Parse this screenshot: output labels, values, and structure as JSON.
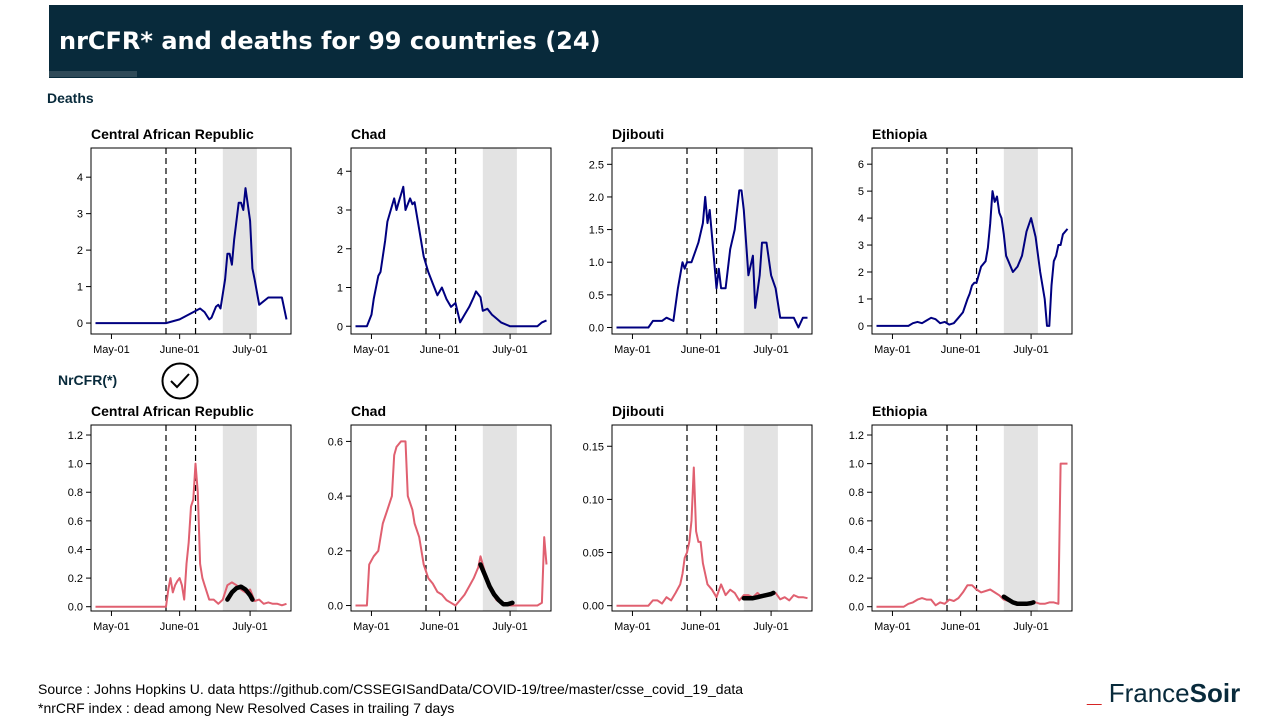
{
  "header": {
    "title": "nrCFR* and deaths for 99 countries (24)"
  },
  "sections": {
    "deaths": "Deaths",
    "nrcfr": "NrCFR(*)"
  },
  "footer": {
    "source": "Source : Johns Hopkins U. data https://github.com/CSSEGISandData/COVID-19/tree/master/csse_covid_19_data",
    "note": "*nrCRF index : dead among New Resolved  Cases in trailing 7 days"
  },
  "logo": {
    "dash": "_",
    "part1": "France",
    "part2": "Soir"
  },
  "colors": {
    "header": "#082a3b",
    "deaths_line": "#000080",
    "nrcfr_line": "#e06070",
    "trend": "#000000",
    "shade": "#e3e3e3"
  },
  "chart_data": [
    {
      "type": "line",
      "title": "Central African Republic",
      "metric": "deaths",
      "xlim": [
        0,
        88
      ],
      "ylim": [
        -0.3,
        4.8
      ],
      "yticks": [
        0,
        1,
        2,
        3,
        4
      ],
      "ytick_labels": [
        "0",
        "1",
        "2",
        "3",
        "4"
      ],
      "xticks": [
        9,
        39,
        70
      ],
      "xtick_labels": [
        "May-01",
        "June-01",
        "July-01"
      ],
      "vlines": [
        33,
        46
      ],
      "shade": [
        58,
        73
      ],
      "x": [
        2,
        33,
        39,
        45,
        48,
        50,
        52,
        53,
        55,
        56,
        57,
        59,
        60,
        61,
        62,
        63,
        65,
        66,
        67,
        68,
        70,
        71,
        72,
        74,
        78,
        84,
        86
      ],
      "y": [
        0,
        0,
        0.1,
        0.3,
        0.4,
        0.3,
        0.1,
        0.15,
        0.45,
        0.5,
        0.4,
        1.2,
        1.9,
        1.9,
        1.6,
        2.3,
        3.3,
        3.3,
        3.1,
        3.7,
        2.8,
        1.5,
        1.2,
        0.5,
        0.7,
        0.7,
        0.1
      ]
    },
    {
      "type": "line",
      "title": "Chad",
      "metric": "deaths",
      "xlim": [
        0,
        88
      ],
      "ylim": [
        -0.2,
        4.6
      ],
      "yticks": [
        0,
        1,
        2,
        3,
        4
      ],
      "ytick_labels": [
        "0",
        "1",
        "2",
        "3",
        "4"
      ],
      "xticks": [
        9,
        39,
        70
      ],
      "xtick_labels": [
        "May-01",
        "June-01",
        "July-01"
      ],
      "vlines": [
        33,
        46
      ],
      "shade": [
        58,
        73
      ],
      "x": [
        2,
        7,
        9,
        10,
        12,
        13,
        15,
        16,
        18,
        19,
        20,
        21,
        22,
        23,
        24,
        26,
        27,
        28,
        30,
        32,
        34,
        36,
        38,
        40,
        42,
        44,
        46,
        48,
        50,
        52,
        54,
        55,
        57,
        58,
        60,
        62,
        64,
        66,
        70,
        74,
        78,
        82,
        84,
        86
      ],
      "y": [
        0,
        0,
        0.3,
        0.7,
        1.3,
        1.4,
        2.2,
        2.7,
        3.1,
        3.3,
        3.0,
        3.2,
        3.4,
        3.6,
        3.0,
        3.3,
        3.15,
        3.2,
        2.5,
        1.8,
        1.4,
        1.1,
        0.8,
        1.0,
        0.7,
        0.5,
        0.6,
        0.1,
        0.3,
        0.5,
        0.75,
        0.9,
        0.75,
        0.4,
        0.45,
        0.3,
        0.2,
        0.1,
        0,
        0,
        0,
        0,
        0.1,
        0.15
      ]
    },
    {
      "type": "line",
      "title": "Djibouti",
      "metric": "deaths",
      "xlim": [
        0,
        88
      ],
      "ylim": [
        -0.1,
        2.75
      ],
      "yticks": [
        0,
        0.5,
        1,
        1.5,
        2,
        2.5
      ],
      "ytick_labels": [
        "0.0",
        "0.5",
        "1.0",
        "1.5",
        "2.0",
        "2.5"
      ],
      "xticks": [
        9,
        39,
        70
      ],
      "xtick_labels": [
        "May-01",
        "June-01",
        "July-01"
      ],
      "vlines": [
        33,
        46
      ],
      "shade": [
        58,
        73
      ],
      "x": [
        2,
        16,
        18,
        22,
        24,
        27,
        29,
        31,
        32,
        33,
        35,
        37,
        38,
        40,
        41,
        42,
        43,
        44,
        46,
        47,
        48,
        50,
        52,
        54,
        55,
        56,
        57,
        58,
        59,
        60,
        62,
        63,
        65,
        66,
        68,
        70,
        72,
        74,
        76,
        78,
        80,
        82,
        84,
        86
      ],
      "y": [
        0,
        0,
        0.1,
        0.1,
        0.15,
        0.1,
        0.6,
        1.0,
        0.9,
        1.0,
        1.0,
        1.2,
        1.3,
        1.6,
        2.0,
        1.6,
        1.8,
        1.4,
        0.6,
        0.9,
        0.6,
        0.6,
        1.2,
        1.5,
        1.8,
        2.1,
        2.1,
        1.8,
        1.3,
        0.8,
        1.1,
        0.3,
        0.8,
        1.3,
        1.3,
        0.8,
        0.6,
        0.15,
        0.15,
        0.15,
        0.15,
        0,
        0.15,
        0.15
      ]
    },
    {
      "type": "line",
      "title": "Ethiopia",
      "metric": "deaths",
      "xlim": [
        0,
        88
      ],
      "ylim": [
        -0.3,
        6.6
      ],
      "yticks": [
        0,
        1,
        2,
        3,
        4,
        5,
        6
      ],
      "ytick_labels": [
        "0",
        "1",
        "2",
        "3",
        "4",
        "5",
        "6"
      ],
      "xticks": [
        9,
        39,
        70
      ],
      "xtick_labels": [
        "May-01",
        "June-01",
        "July-01"
      ],
      "vlines": [
        33,
        46
      ],
      "shade": [
        58,
        73
      ],
      "x": [
        2,
        14,
        16,
        18,
        20,
        22,
        24,
        26,
        28,
        30,
        32,
        34,
        36,
        38,
        40,
        42,
        43,
        44,
        45,
        46,
        48,
        50,
        51,
        52,
        53,
        54,
        55,
        56,
        57,
        58,
        59,
        60,
        62,
        64,
        66,
        68,
        70,
        72,
        74,
        76,
        77,
        78,
        79,
        80,
        81,
        82,
        83,
        84,
        86
      ],
      "y": [
        0,
        0,
        0,
        0.1,
        0.15,
        0.1,
        0.2,
        0.3,
        0.25,
        0.1,
        0.15,
        0.05,
        0.1,
        0.3,
        0.5,
        1.0,
        1.2,
        1.5,
        1.6,
        1.6,
        2.2,
        2.4,
        2.9,
        3.8,
        5.0,
        4.6,
        4.8,
        4.2,
        4.0,
        3.4,
        2.6,
        2.4,
        2.0,
        2.2,
        2.6,
        3.5,
        4.0,
        3.3,
        2.0,
        1.0,
        0,
        0,
        1.5,
        2.4,
        2.6,
        3.0,
        3.0,
        3.4,
        3.6
      ]
    },
    {
      "type": "line",
      "title": "Central African Republic",
      "metric": "nrcfr",
      "xlim": [
        0,
        88
      ],
      "ylim": [
        -0.03,
        1.27
      ],
      "yticks": [
        0,
        0.2,
        0.4,
        0.6,
        0.8,
        1.0,
        1.2
      ],
      "ytick_labels": [
        "0.0",
        "0.2",
        "0.4",
        "0.6",
        "0.8",
        "1.0",
        "1.2"
      ],
      "xticks": [
        9,
        39,
        70
      ],
      "xtick_labels": [
        "May-01",
        "June-01",
        "July-01"
      ],
      "vlines": [
        33,
        46
      ],
      "shade": [
        58,
        73
      ],
      "x": [
        2,
        33,
        34,
        35,
        36,
        37,
        38,
        39,
        40,
        41,
        42,
        43,
        44,
        45,
        46,
        47,
        48,
        49,
        50,
        52,
        54,
        56,
        58,
        60,
        62,
        64,
        66,
        68,
        70,
        72,
        74,
        76,
        78,
        80,
        82,
        84,
        86
      ],
      "y": [
        0,
        0,
        0.12,
        0.2,
        0.1,
        0.15,
        0.18,
        0.2,
        0.15,
        0.05,
        0.3,
        0.45,
        0.7,
        0.75,
        1.0,
        0.8,
        0.3,
        0.2,
        0.15,
        0.05,
        0.05,
        0.02,
        0.05,
        0.15,
        0.17,
        0.15,
        0.12,
        0.1,
        0.12,
        0.04,
        0.05,
        0.02,
        0.03,
        0.02,
        0.02,
        0.01,
        0.02
      ],
      "trend_x": [
        60,
        62,
        64,
        66,
        68,
        70,
        71
      ],
      "trend_y": [
        0.05,
        0.1,
        0.13,
        0.14,
        0.12,
        0.08,
        0.05
      ]
    },
    {
      "type": "line",
      "title": "Chad",
      "metric": "nrcfr",
      "xlim": [
        0,
        88
      ],
      "ylim": [
        -0.02,
        0.66
      ],
      "yticks": [
        0,
        0.2,
        0.4,
        0.6
      ],
      "ytick_labels": [
        "0.0",
        "0.2",
        "0.4",
        "0.6"
      ],
      "xticks": [
        9,
        39,
        70
      ],
      "xtick_labels": [
        "May-01",
        "June-01",
        "July-01"
      ],
      "vlines": [
        33,
        46
      ],
      "shade": [
        58,
        73
      ],
      "x": [
        2,
        7,
        8,
        10,
        12,
        14,
        16,
        18,
        19,
        20,
        22,
        24,
        25,
        27,
        28,
        30,
        32,
        34,
        36,
        38,
        40,
        42,
        44,
        46,
        48,
        50,
        52,
        54,
        56,
        57,
        58,
        59,
        60,
        62,
        64,
        66,
        70,
        74,
        78,
        82,
        84,
        85,
        86
      ],
      "y": [
        0,
        0,
        0.15,
        0.18,
        0.2,
        0.3,
        0.35,
        0.4,
        0.55,
        0.58,
        0.6,
        0.6,
        0.4,
        0.35,
        0.3,
        0.25,
        0.15,
        0.1,
        0.08,
        0.05,
        0.04,
        0.02,
        0.01,
        0,
        0.02,
        0.04,
        0.07,
        0.1,
        0.14,
        0.18,
        0.15,
        0.12,
        0.08,
        0.05,
        0.02,
        0.01,
        0,
        0,
        0,
        0,
        0.01,
        0.25,
        0.15
      ],
      "trend_x": [
        57,
        59,
        61,
        63,
        65,
        67,
        69,
        71
      ],
      "trend_y": [
        0.15,
        0.11,
        0.07,
        0.04,
        0.02,
        0.005,
        0.005,
        0.01
      ]
    },
    {
      "type": "line",
      "title": "Djibouti",
      "metric": "nrcfr",
      "xlim": [
        0,
        88
      ],
      "ylim": [
        -0.005,
        0.17
      ],
      "yticks": [
        0,
        0.05,
        0.1,
        0.15
      ],
      "ytick_labels": [
        "0.00",
        "0.05",
        "0.10",
        "0.15"
      ],
      "xticks": [
        9,
        39,
        70
      ],
      "xtick_labels": [
        "May-01",
        "June-01",
        "July-01"
      ],
      "vlines": [
        33,
        46
      ],
      "shade": [
        58,
        73
      ],
      "x": [
        2,
        16,
        18,
        20,
        22,
        24,
        26,
        28,
        30,
        31,
        32,
        33,
        34,
        35,
        36,
        37,
        38,
        39,
        40,
        41,
        42,
        44,
        46,
        48,
        50,
        52,
        54,
        56,
        58,
        60,
        62,
        64,
        66,
        68,
        70,
        72,
        74,
        76,
        78,
        80,
        82,
        84,
        86
      ],
      "y": [
        0,
        0,
        0.005,
        0.005,
        0.002,
        0.008,
        0.005,
        0.012,
        0.02,
        0.03,
        0.045,
        0.05,
        0.06,
        0.08,
        0.13,
        0.07,
        0.06,
        0.06,
        0.04,
        0.03,
        0.02,
        0.015,
        0.008,
        0.02,
        0.01,
        0.015,
        0.012,
        0.005,
        0.01,
        0.01,
        0.008,
        0.012,
        0.008,
        0.01,
        0.012,
        0.012,
        0.006,
        0.008,
        0.005,
        0.01,
        0.008,
        0.008,
        0.007
      ],
      "trend_x": [
        58,
        60,
        62,
        64,
        66,
        68,
        70,
        71
      ],
      "trend_y": [
        0.007,
        0.007,
        0.007,
        0.008,
        0.009,
        0.01,
        0.011,
        0.012
      ]
    },
    {
      "type": "line",
      "title": "Ethiopia",
      "metric": "nrcfr",
      "xlim": [
        0,
        88
      ],
      "ylim": [
        -0.03,
        1.27
      ],
      "yticks": [
        0,
        0.2,
        0.4,
        0.6,
        0.8,
        1.0,
        1.2
      ],
      "ytick_labels": [
        "0.0",
        "0.2",
        "0.4",
        "0.6",
        "0.8",
        "1.0",
        "1.2"
      ],
      "xticks": [
        9,
        39,
        70
      ],
      "xtick_labels": [
        "May-01",
        "June-01",
        "July-01"
      ],
      "vlines": [
        33,
        46
      ],
      "shade": [
        58,
        73
      ],
      "x": [
        2,
        14,
        16,
        18,
        20,
        22,
        24,
        26,
        28,
        30,
        32,
        34,
        36,
        38,
        40,
        42,
        44,
        46,
        48,
        50,
        52,
        54,
        56,
        58,
        60,
        62,
        64,
        66,
        68,
        70,
        72,
        74,
        76,
        78,
        80,
        82,
        83,
        86
      ],
      "y": [
        0,
        0,
        0.02,
        0.03,
        0.05,
        0.06,
        0.05,
        0.05,
        0.01,
        0.03,
        0.02,
        0.05,
        0.04,
        0.06,
        0.1,
        0.15,
        0.15,
        0.12,
        0.1,
        0.11,
        0.12,
        0.1,
        0.08,
        0.05,
        0.04,
        0.03,
        0.03,
        0.02,
        0.02,
        0.03,
        0.03,
        0.02,
        0.02,
        0.03,
        0.03,
        0.02,
        1.0,
        1.0
      ],
      "trend_x": [
        58,
        60,
        62,
        64,
        66,
        68,
        70,
        71
      ],
      "trend_y": [
        0.07,
        0.05,
        0.03,
        0.02,
        0.02,
        0.02,
        0.025,
        0.03
      ]
    }
  ]
}
